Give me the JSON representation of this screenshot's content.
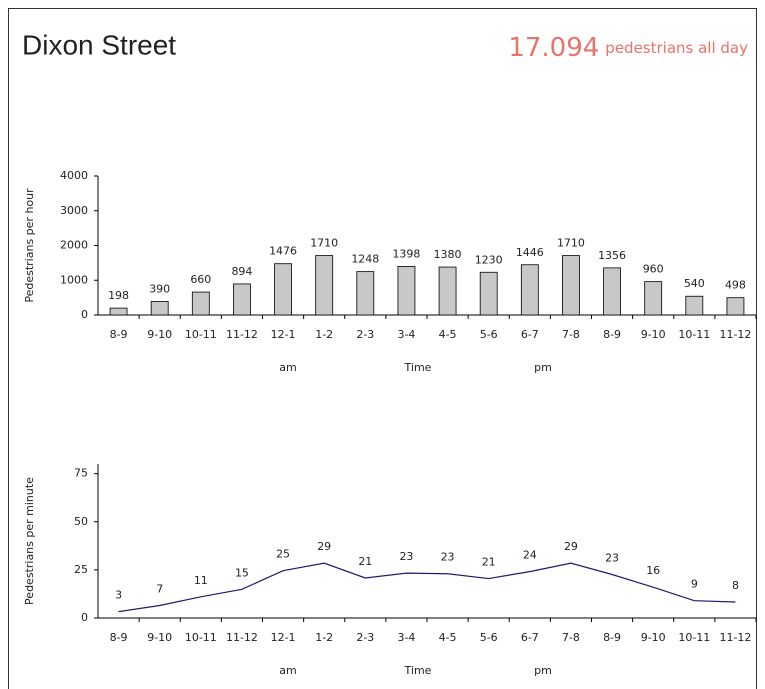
{
  "header": {
    "title": "Dixon Street",
    "total": "17.094",
    "total_label": "pedestrians all day"
  },
  "chart_data": [
    {
      "type": "bar",
      "y_label": "Pedestrians per hour",
      "x_label": "Time",
      "annotations": [
        "am",
        "pm"
      ],
      "categories": [
        "8-9",
        "9-10",
        "10-11",
        "11-12",
        "12-1",
        "1-2",
        "2-3",
        "3-4",
        "4-5",
        "5-6",
        "6-7",
        "7-8",
        "8-9",
        "9-10",
        "10-11",
        "11-12"
      ],
      "values": [
        198,
        390,
        660,
        894,
        1476,
        1710,
        1248,
        1398,
        1380,
        1230,
        1446,
        1710,
        1356,
        960,
        540,
        498
      ],
      "color": "#c8c8c8",
      "ylim": [
        0,
        4000
      ],
      "yticks": [
        0,
        1000,
        2000,
        3000,
        4000
      ]
    },
    {
      "type": "line",
      "y_label": "Pedestrians per minute",
      "x_label": "Time",
      "annotations": [
        "am",
        "pm"
      ],
      "categories": [
        "8-9",
        "9-10",
        "10-11",
        "11-12",
        "12-1",
        "1-2",
        "2-3",
        "3-4",
        "4-5",
        "5-6",
        "6-7",
        "7-8",
        "8-9",
        "9-10",
        "10-11",
        "11-12"
      ],
      "values": [
        3.3,
        6.5,
        11,
        14.9,
        24.6,
        28.5,
        20.8,
        23.3,
        23,
        20.5,
        24.1,
        28.5,
        22.6,
        16,
        9,
        8.3
      ],
      "value_labels": [
        "3",
        "7",
        "11",
        "15",
        "25",
        "29",
        "21",
        "23",
        "23",
        "21",
        "24",
        "29",
        "23",
        "16",
        "9",
        "8"
      ],
      "color": "#1c1c6b",
      "ylim": [
        0,
        80
      ],
      "yticks": [
        0,
        25,
        50,
        75
      ]
    }
  ]
}
